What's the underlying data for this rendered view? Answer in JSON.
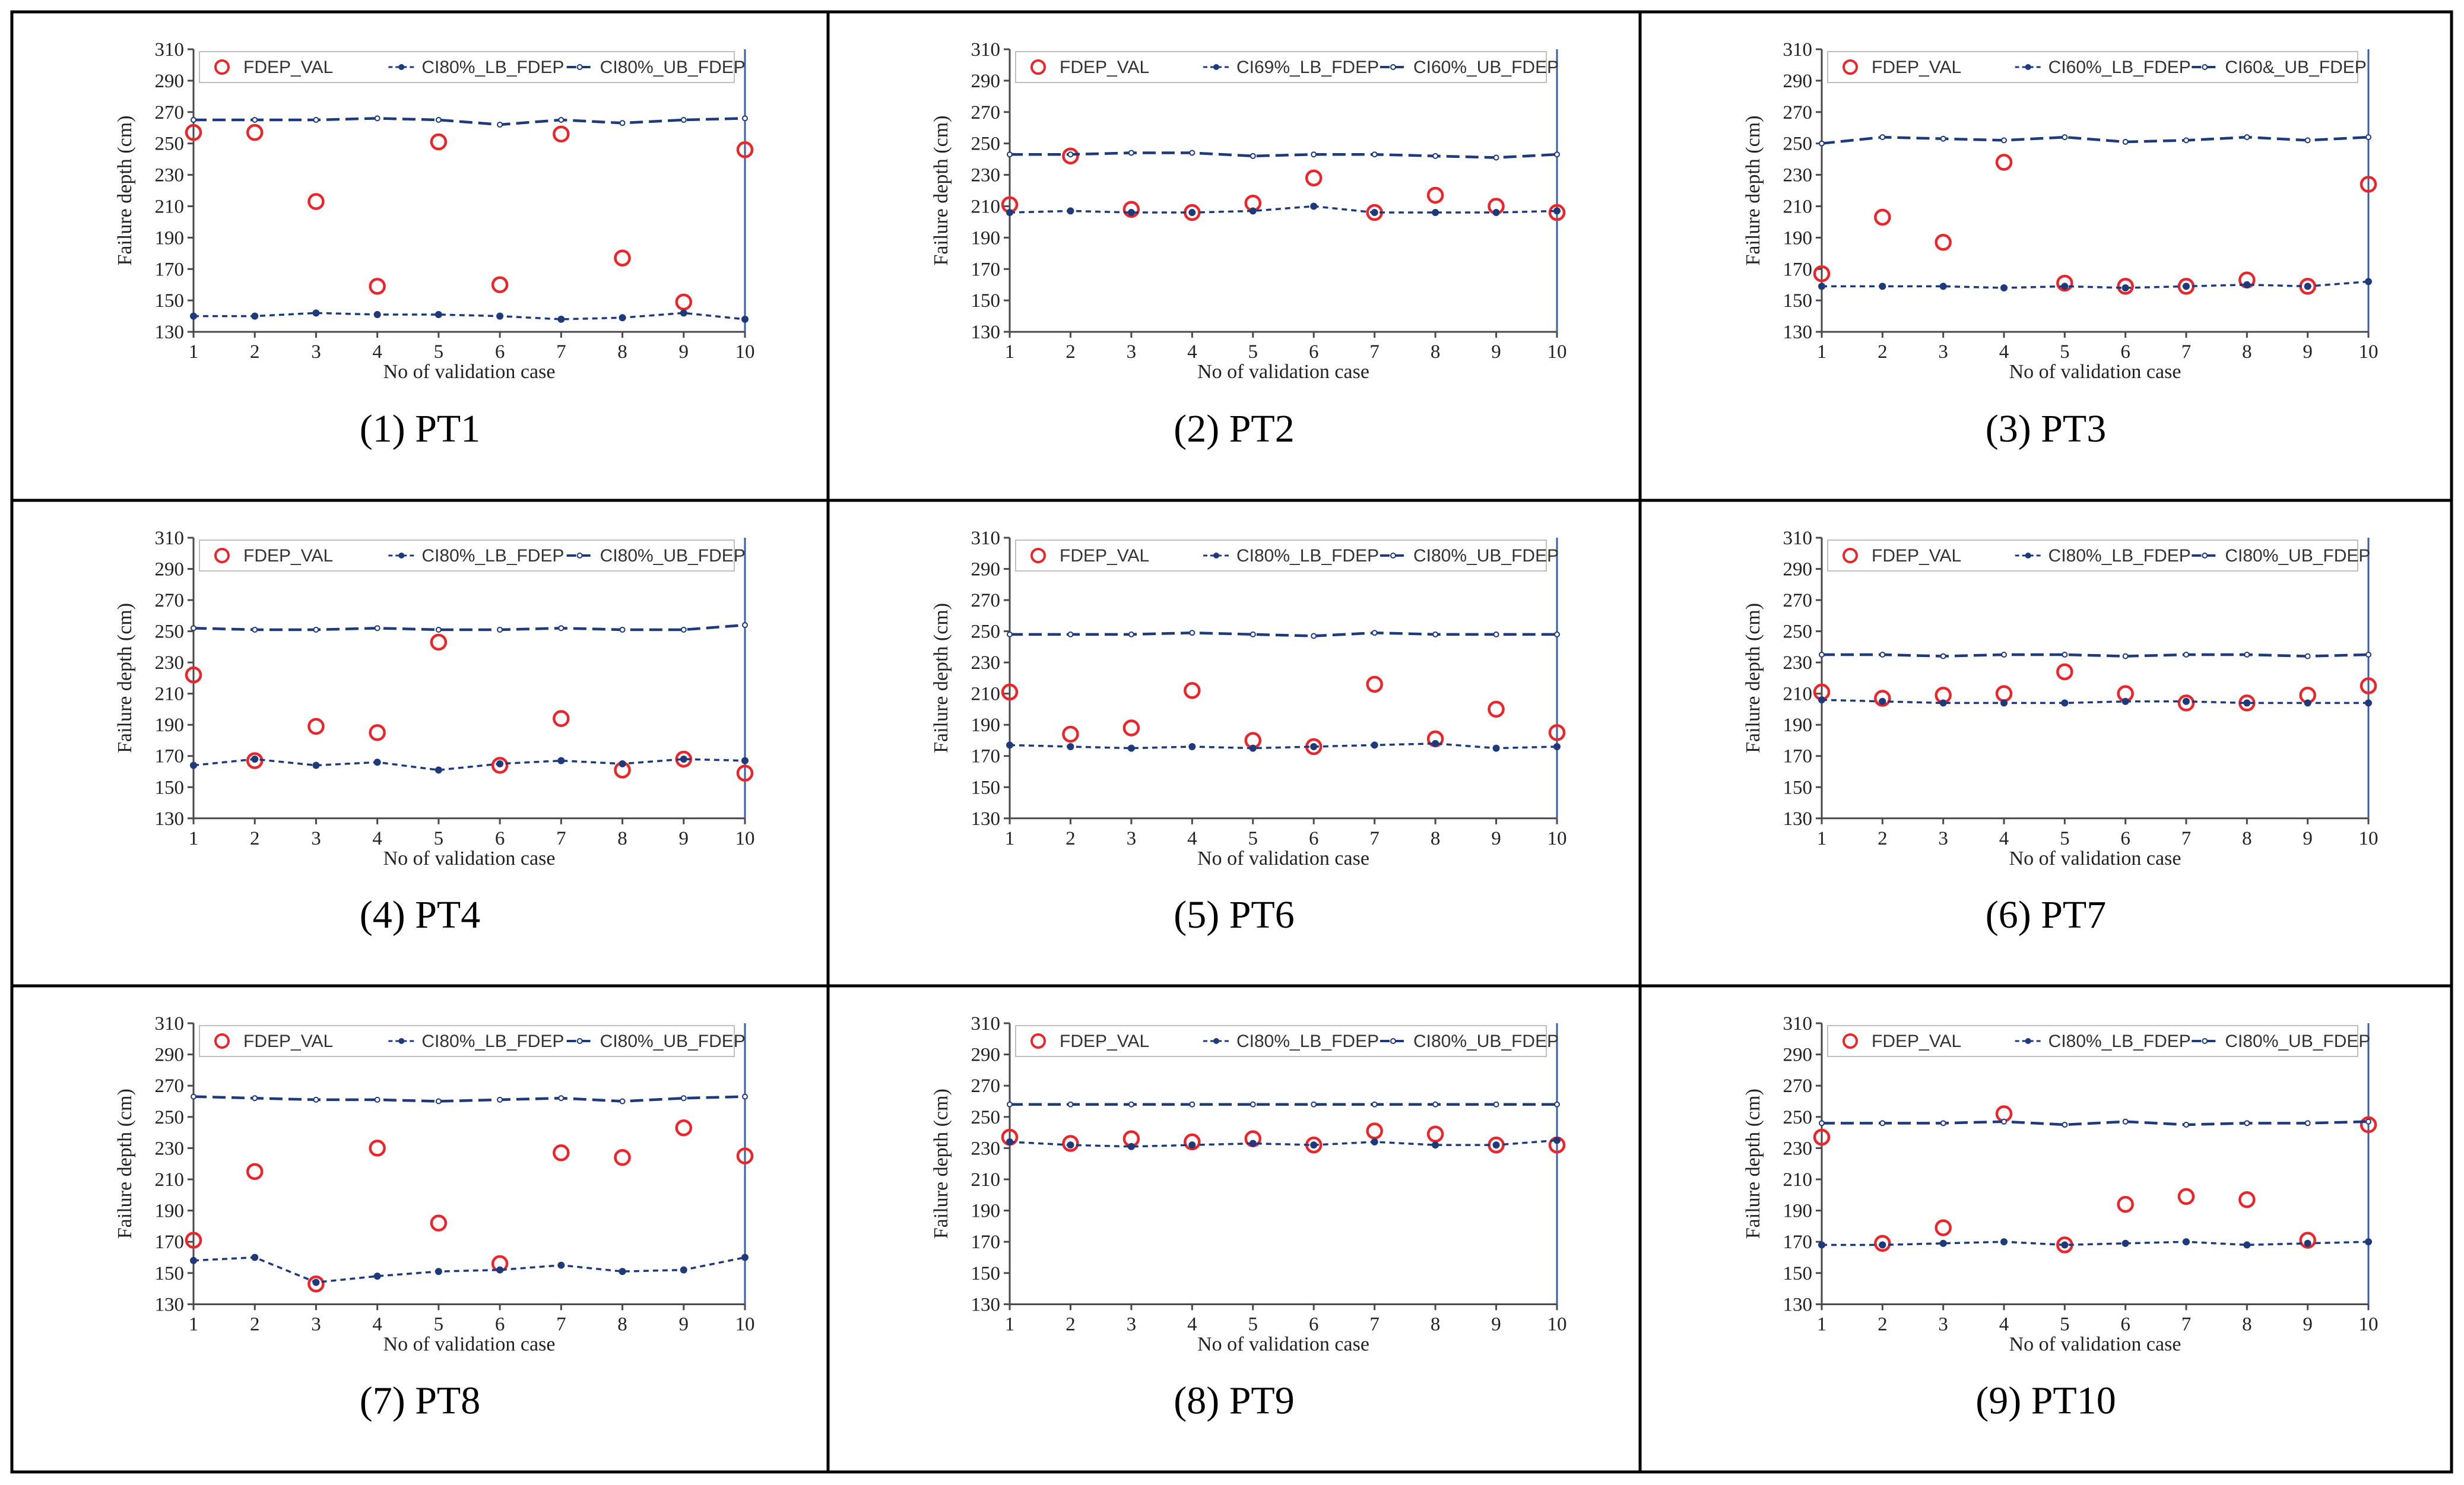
{
  "figure": {
    "common": {
      "xlabel": "No  of validation case",
      "ylabel": "Failure depth (cm)",
      "ylim": [
        130,
        310
      ],
      "yticks": [
        130,
        150,
        170,
        190,
        210,
        230,
        250,
        270,
        290,
        310
      ],
      "xticks": [
        1,
        2,
        3,
        4,
        5,
        6,
        7,
        8,
        9,
        10
      ],
      "colors": {
        "val": "#e8262b",
        "lb": "#1f3a7a",
        "ub": "#1f3a7a"
      }
    }
  },
  "chart_data": [
    {
      "type": "scatter",
      "caption": "(1) PT1",
      "legend": [
        "FDEP_VAL",
        "CI80%_LB_FDEP",
        "CI80%_UB_FDEP"
      ],
      "x": [
        1,
        2,
        3,
        4,
        5,
        6,
        7,
        8,
        9,
        10
      ],
      "series": [
        {
          "key": "val",
          "values": [
            257,
            257,
            213,
            159,
            251,
            160,
            256,
            177,
            149,
            246
          ]
        },
        {
          "key": "lb",
          "values": [
            140,
            140,
            142,
            141,
            141,
            140,
            138,
            139,
            142,
            138
          ]
        },
        {
          "key": "ub",
          "values": [
            265,
            265,
            265,
            266,
            265,
            262,
            265,
            263,
            265,
            266
          ]
        }
      ]
    },
    {
      "type": "scatter",
      "caption": "(2) PT2",
      "legend": [
        "FDEP_VAL",
        "CI69%_LB_FDEP",
        "CI60%_UB_FDEP"
      ],
      "x": [
        1,
        2,
        3,
        4,
        5,
        6,
        7,
        8,
        9,
        10
      ],
      "series": [
        {
          "key": "val",
          "values": [
            211,
            242,
            208,
            206,
            212,
            228,
            206,
            217,
            210,
            206
          ]
        },
        {
          "key": "lb",
          "values": [
            206,
            207,
            206,
            206,
            207,
            210,
            206,
            206,
            206,
            207
          ]
        },
        {
          "key": "ub",
          "values": [
            243,
            243,
            244,
            244,
            242,
            243,
            243,
            242,
            241,
            243
          ]
        }
      ]
    },
    {
      "type": "scatter",
      "caption": "(3) PT3",
      "legend": [
        "FDEP_VAL",
        "CI60%_LB_FDEP",
        "CI60&_UB_FDEP"
      ],
      "x": [
        1,
        2,
        3,
        4,
        5,
        6,
        7,
        8,
        9,
        10
      ],
      "series": [
        {
          "key": "val",
          "values": [
            167,
            203,
            187,
            238,
            161,
            159,
            159,
            163,
            159,
            224
          ]
        },
        {
          "key": "lb",
          "values": [
            159,
            159,
            159,
            158,
            159,
            158,
            159,
            160,
            159,
            162
          ]
        },
        {
          "key": "ub",
          "values": [
            250,
            254,
            253,
            252,
            254,
            251,
            252,
            254,
            252,
            254
          ]
        }
      ]
    },
    {
      "type": "scatter",
      "caption": "(4) PT4",
      "legend": [
        "FDEP_VAL",
        "CI80%_LB_FDEP",
        "CI80%_UB_FDEP"
      ],
      "x": [
        1,
        2,
        3,
        4,
        5,
        6,
        7,
        8,
        9,
        10
      ],
      "series": [
        {
          "key": "val",
          "values": [
            222,
            167,
            189,
            185,
            243,
            164,
            194,
            161,
            168,
            159
          ]
        },
        {
          "key": "lb",
          "values": [
            164,
            168,
            164,
            166,
            161,
            165,
            167,
            165,
            168,
            167
          ]
        },
        {
          "key": "ub",
          "values": [
            252,
            251,
            251,
            252,
            251,
            251,
            252,
            251,
            251,
            254
          ]
        }
      ]
    },
    {
      "type": "scatter",
      "caption": "(5) PT6",
      "legend": [
        "FDEP_VAL",
        "CI80%_LB_FDEP",
        "CI80%_UB_FDEP"
      ],
      "x": [
        1,
        2,
        3,
        4,
        5,
        6,
        7,
        8,
        9,
        10
      ],
      "series": [
        {
          "key": "val",
          "values": [
            211,
            184,
            188,
            212,
            180,
            176,
            216,
            181,
            200,
            185
          ]
        },
        {
          "key": "lb",
          "values": [
            177,
            176,
            175,
            176,
            175,
            176,
            177,
            178,
            175,
            176
          ]
        },
        {
          "key": "ub",
          "values": [
            248,
            248,
            248,
            249,
            248,
            247,
            249,
            248,
            248,
            248
          ]
        }
      ]
    },
    {
      "type": "scatter",
      "caption": "(6) PT7",
      "legend": [
        "FDEP_VAL",
        "CI80%_LB_FDEP",
        "CI80%_UB_FDEP"
      ],
      "x": [
        1,
        2,
        3,
        4,
        5,
        6,
        7,
        8,
        9,
        10
      ],
      "series": [
        {
          "key": "val",
          "values": [
            211,
            207,
            209,
            210,
            224,
            210,
            204,
            204,
            209,
            215
          ]
        },
        {
          "key": "lb",
          "values": [
            206,
            205,
            204,
            204,
            204,
            205,
            205,
            204,
            204,
            204
          ]
        },
        {
          "key": "ub",
          "values": [
            235,
            235,
            234,
            235,
            235,
            234,
            235,
            235,
            234,
            235
          ]
        }
      ]
    },
    {
      "type": "scatter",
      "caption": "(7) PT8",
      "legend": [
        "FDEP_VAL",
        "CI80%_LB_FDEP",
        "CI80%_UB_FDEP"
      ],
      "x": [
        1,
        2,
        3,
        4,
        5,
        6,
        7,
        8,
        9,
        10
      ],
      "series": [
        {
          "key": "val",
          "values": [
            171,
            215,
            143,
            230,
            182,
            156,
            227,
            224,
            243,
            225
          ]
        },
        {
          "key": "lb",
          "values": [
            158,
            160,
            144,
            148,
            151,
            152,
            155,
            151,
            152,
            160
          ]
        },
        {
          "key": "ub",
          "values": [
            263,
            262,
            261,
            261,
            260,
            261,
            262,
            260,
            262,
            263
          ]
        }
      ]
    },
    {
      "type": "scatter",
      "caption": "(8) PT9",
      "legend": [
        "FDEP_VAL",
        "CI80%_LB_FDEP",
        "CI80%_UB_FDEP"
      ],
      "x": [
        1,
        2,
        3,
        4,
        5,
        6,
        7,
        8,
        9,
        10
      ],
      "series": [
        {
          "key": "val",
          "values": [
            237,
            233,
            236,
            234,
            236,
            232,
            241,
            239,
            232,
            232
          ]
        },
        {
          "key": "lb",
          "values": [
            234,
            232,
            231,
            232,
            233,
            232,
            234,
            232,
            232,
            235
          ]
        },
        {
          "key": "ub",
          "values": [
            258,
            258,
            258,
            258,
            258,
            258,
            258,
            258,
            258,
            258
          ]
        }
      ]
    },
    {
      "type": "scatter",
      "caption": "(9) PT10",
      "legend": [
        "FDEP_VAL",
        "CI80%_LB_FDEP",
        "CI80%_UB_FDEP"
      ],
      "x": [
        1,
        2,
        3,
        4,
        5,
        6,
        7,
        8,
        9,
        10
      ],
      "series": [
        {
          "key": "val",
          "values": [
            237,
            169,
            179,
            252,
            168,
            194,
            199,
            197,
            171,
            245
          ]
        },
        {
          "key": "lb",
          "values": [
            168,
            168,
            169,
            170,
            168,
            169,
            170,
            168,
            169,
            170
          ]
        },
        {
          "key": "ub",
          "values": [
            246,
            246,
            246,
            247,
            245,
            247,
            245,
            246,
            246,
            247
          ]
        }
      ]
    }
  ]
}
